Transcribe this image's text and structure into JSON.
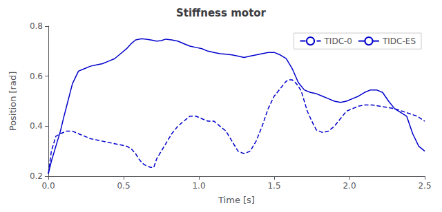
{
  "chart_data": {
    "type": "line",
    "title": "Stiffness motor",
    "x_label": "Time [s]",
    "y_label": "Position [rad]",
    "xlim": [
      0,
      2.5
    ],
    "ylim": [
      0.2,
      0.8
    ],
    "xticks": [
      {
        "value": 0,
        "label": "0.0"
      },
      0.5,
      {
        "value": 1.0,
        "label": "1.0"
      },
      1.5,
      {
        "value": 2.0,
        "label": "2.0"
      },
      2.5
    ],
    "yticks": [
      0.2,
      0.4,
      0.6,
      0.8
    ],
    "grid": false,
    "legend": "upper right",
    "series": [
      {
        "name": "TIDC-0",
        "color": "#0000CD",
        "line_style": "dashed",
        "x": [
          0.0,
          0.02,
          0.05,
          0.08,
          0.12,
          0.16,
          0.2,
          0.24,
          0.28,
          0.32,
          0.36,
          0.4,
          0.44,
          0.48,
          0.52,
          0.55,
          0.58,
          0.6,
          0.62,
          0.64,
          0.66,
          0.68,
          0.7,
          0.72,
          0.75,
          0.78,
          0.82,
          0.86,
          0.9,
          0.94,
          0.98,
          1.02,
          1.06,
          1.1,
          1.14,
          1.18,
          1.22,
          1.26,
          1.3,
          1.34,
          1.38,
          1.42,
          1.46,
          1.5,
          1.54,
          1.58,
          1.6,
          1.62,
          1.64,
          1.66,
          1.68,
          1.7,
          1.72,
          1.75,
          1.78,
          1.82,
          1.86,
          1.9,
          1.94,
          1.98,
          2.02,
          2.06,
          2.1,
          2.15,
          2.2,
          2.25,
          2.3,
          2.35,
          2.4,
          2.45,
          2.5
        ],
        "values": [
          0.21,
          0.3,
          0.36,
          0.37,
          0.38,
          0.38,
          0.37,
          0.36,
          0.35,
          0.345,
          0.34,
          0.335,
          0.33,
          0.325,
          0.32,
          0.31,
          0.29,
          0.27,
          0.255,
          0.245,
          0.24,
          0.235,
          0.235,
          0.27,
          0.3,
          0.33,
          0.37,
          0.4,
          0.42,
          0.44,
          0.44,
          0.43,
          0.42,
          0.42,
          0.4,
          0.38,
          0.34,
          0.3,
          0.29,
          0.3,
          0.34,
          0.4,
          0.47,
          0.52,
          0.55,
          0.58,
          0.585,
          0.585,
          0.575,
          0.56,
          0.54,
          0.5,
          0.46,
          0.42,
          0.385,
          0.375,
          0.38,
          0.4,
          0.43,
          0.46,
          0.47,
          0.48,
          0.485,
          0.485,
          0.48,
          0.475,
          0.47,
          0.46,
          0.45,
          0.44,
          0.42
        ]
      },
      {
        "name": "TIDC-ES",
        "color": "#0000CD",
        "line_style": "solid",
        "x": [
          0.0,
          0.02,
          0.05,
          0.08,
          0.1,
          0.13,
          0.16,
          0.2,
          0.24,
          0.28,
          0.32,
          0.36,
          0.4,
          0.44,
          0.48,
          0.52,
          0.55,
          0.58,
          0.62,
          0.65,
          0.68,
          0.72,
          0.75,
          0.78,
          0.82,
          0.86,
          0.9,
          0.94,
          0.98,
          1.02,
          1.06,
          1.1,
          1.14,
          1.18,
          1.22,
          1.26,
          1.3,
          1.34,
          1.38,
          1.42,
          1.46,
          1.5,
          1.54,
          1.58,
          1.62,
          1.66,
          1.7,
          1.74,
          1.78,
          1.82,
          1.86,
          1.9,
          1.94,
          1.98,
          2.02,
          2.06,
          2.1,
          2.14,
          2.18,
          2.22,
          2.26,
          2.3,
          2.34,
          2.38,
          2.42,
          2.46,
          2.5
        ],
        "values": [
          0.21,
          0.26,
          0.32,
          0.38,
          0.43,
          0.5,
          0.57,
          0.62,
          0.63,
          0.64,
          0.645,
          0.65,
          0.66,
          0.67,
          0.69,
          0.71,
          0.73,
          0.745,
          0.75,
          0.748,
          0.745,
          0.74,
          0.742,
          0.748,
          0.745,
          0.74,
          0.73,
          0.72,
          0.715,
          0.71,
          0.7,
          0.695,
          0.69,
          0.688,
          0.685,
          0.68,
          0.675,
          0.68,
          0.685,
          0.69,
          0.695,
          0.695,
          0.685,
          0.67,
          0.63,
          0.575,
          0.545,
          0.535,
          0.53,
          0.52,
          0.51,
          0.5,
          0.495,
          0.5,
          0.51,
          0.52,
          0.535,
          0.545,
          0.545,
          0.535,
          0.5,
          0.47,
          0.455,
          0.44,
          0.37,
          0.32,
          0.3
        ]
      }
    ]
  }
}
